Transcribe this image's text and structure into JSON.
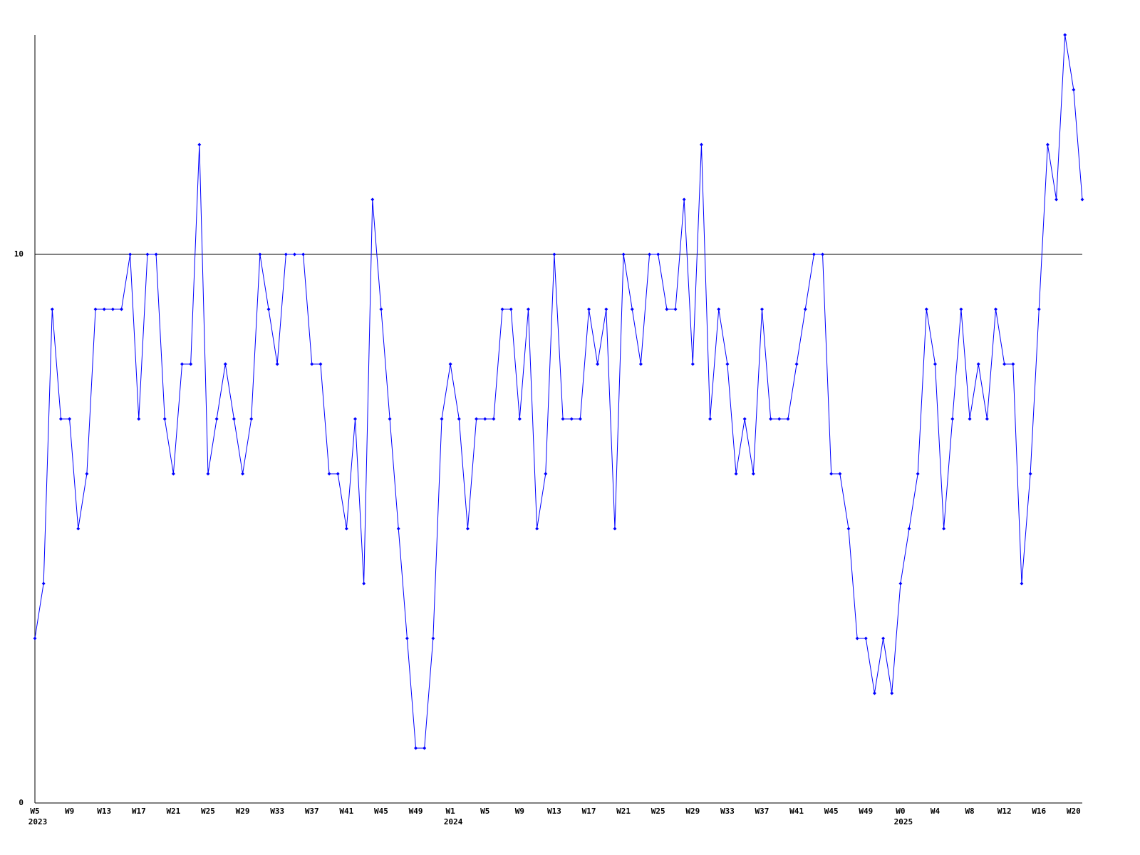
{
  "chart_data": {
    "type": "line",
    "categories": [
      "W5",
      null,
      null,
      null,
      "W9",
      null,
      null,
      null,
      "W13",
      null,
      null,
      null,
      "W17",
      null,
      null,
      null,
      "W21",
      null,
      null,
      null,
      "W25",
      null,
      null,
      null,
      "W29",
      null,
      null,
      null,
      "W33",
      null,
      null,
      null,
      "W37",
      null,
      null,
      null,
      "W41",
      null,
      null,
      null,
      "W45",
      null,
      null,
      null,
      "W49",
      null,
      null,
      null,
      "W1",
      null,
      null,
      null,
      "W5",
      null,
      null,
      null,
      "W9",
      null,
      null,
      null,
      "W13",
      null,
      null,
      null,
      "W17",
      null,
      null,
      null,
      "W21",
      null,
      null,
      null,
      "W25",
      null,
      null,
      null,
      "W29",
      null,
      null,
      null,
      "W33",
      null,
      null,
      null,
      "W37",
      null,
      null,
      null,
      "W41",
      null,
      null,
      null,
      "W45",
      null,
      null,
      null,
      "W49",
      null,
      null,
      null,
      "W0",
      null,
      null,
      null,
      "W4",
      null,
      null,
      null,
      "W8",
      null,
      null,
      null,
      "W12",
      null,
      null,
      null,
      "W16",
      null,
      null,
      null,
      "W20",
      null
    ],
    "years": [
      "2023",
      null,
      null,
      null,
      null,
      null,
      null,
      null,
      null,
      null,
      null,
      null,
      null,
      null,
      null,
      null,
      null,
      null,
      null,
      null,
      null,
      null,
      null,
      null,
      null,
      null,
      null,
      null,
      null,
      null,
      null,
      null,
      null,
      null,
      null,
      null,
      null,
      null,
      null,
      null,
      null,
      null,
      null,
      null,
      null,
      null,
      null,
      null,
      "2024",
      null,
      null,
      null,
      null,
      null,
      null,
      null,
      null,
      null,
      null,
      null,
      null,
      null,
      null,
      null,
      null,
      null,
      null,
      null,
      null,
      null,
      null,
      null,
      null,
      null,
      null,
      null,
      null,
      null,
      null,
      null,
      null,
      null,
      null,
      null,
      null,
      null,
      null,
      null,
      null,
      null,
      null,
      null,
      null,
      null,
      null,
      null,
      null,
      null,
      null,
      null,
      "2025",
      null,
      null,
      null,
      null,
      null,
      null,
      null,
      null,
      null,
      null,
      null,
      null,
      null,
      null,
      null,
      null,
      null,
      null,
      null,
      null,
      null
    ],
    "series": [
      {
        "color": "#0000ff",
        "values": [
          3,
          4,
          9,
          7,
          7,
          5,
          6,
          9,
          9,
          9,
          9,
          10,
          7,
          10,
          10,
          7,
          6,
          8,
          8,
          12,
          6,
          7,
          8,
          7,
          6,
          7,
          10,
          9,
          8,
          10,
          10,
          10,
          8,
          8,
          6,
          6,
          5,
          7,
          4,
          11,
          9,
          7,
          5,
          3,
          1,
          1,
          3,
          7,
          8,
          7,
          5,
          7,
          7,
          7,
          9,
          9,
          7,
          9,
          5,
          6,
          10,
          7,
          7,
          7,
          9,
          8,
          9,
          5,
          10,
          9,
          8,
          10,
          10,
          9,
          9,
          11,
          8,
          12,
          7,
          9,
          8,
          6,
          7,
          6,
          9,
          7,
          7,
          7,
          8,
          9,
          10,
          10,
          6,
          6,
          5,
          3,
          3,
          2,
          3,
          2,
          4,
          5,
          6,
          9,
          8,
          5,
          7,
          9,
          7,
          8,
          7,
          9,
          8,
          8,
          4,
          6,
          9,
          12,
          11,
          14,
          13,
          11
        ]
      }
    ],
    "ylim": [
      0,
      14
    ],
    "yticks": [
      0,
      10
    ],
    "grid": true
  }
}
